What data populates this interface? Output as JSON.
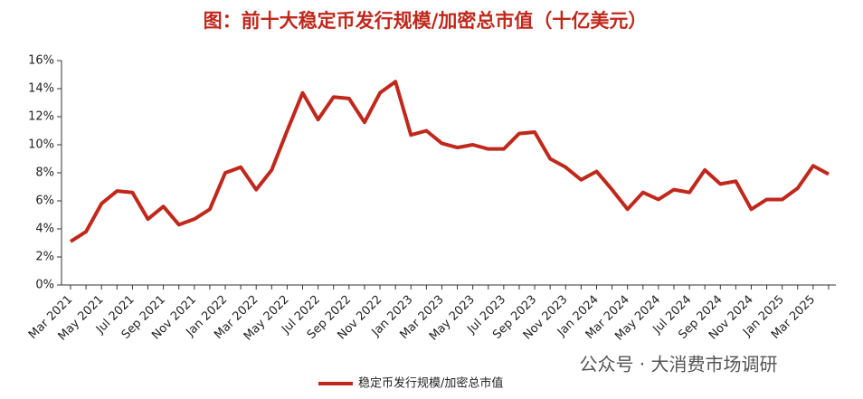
{
  "chart_data": {
    "type": "line",
    "title": "图：前十大稳定币发行规模/加密总市值（十亿美元）",
    "watermark": "公众号 · 大消费市场调研",
    "categories": [
      "Mar 2021",
      null,
      "May 2021",
      null,
      "Jul 2021",
      null,
      "Sep 2021",
      null,
      "Nov 2021",
      null,
      "Jan 2022",
      null,
      "Mar 2022",
      null,
      "May 2022",
      null,
      "Jul 2022",
      null,
      "Sep 2022",
      null,
      "Nov 2022",
      null,
      "Jan 2023",
      null,
      "Mar 2023",
      null,
      "May 2023",
      null,
      "Jul 2023",
      null,
      "Sep 2023",
      null,
      "Nov 2023",
      null,
      "Jan 2024",
      null,
      "Mar 2024",
      null,
      "May 2024",
      null,
      "Jul 2024",
      null,
      "Sep 2024",
      null,
      "Nov 2024",
      null,
      "Jan 2025",
      null,
      "Mar 2025",
      null
    ],
    "series": [
      {
        "name": "稳定币发行规模/加密总市值",
        "color": "#c0281c",
        "values": [
          3.1,
          3.8,
          5.8,
          6.7,
          6.6,
          4.7,
          5.6,
          4.3,
          4.7,
          5.4,
          8.0,
          8.4,
          6.8,
          8.2,
          11.0,
          13.7,
          11.8,
          13.4,
          13.3,
          11.6,
          13.7,
          14.5,
          10.7,
          11.0,
          10.1,
          9.8,
          10.0,
          9.7,
          9.7,
          10.8,
          10.9,
          9.0,
          8.4,
          7.5,
          8.1,
          6.8,
          5.4,
          6.6,
          6.1,
          6.8,
          6.6,
          8.2,
          7.2,
          7.4,
          5.4,
          6.1,
          6.1,
          6.9,
          8.5,
          7.9
        ]
      }
    ],
    "ylim": [
      0,
      16
    ],
    "yticks": [
      {
        "value": 0,
        "label": "0%"
      },
      {
        "value": 2,
        "label": "2%"
      },
      {
        "value": 4,
        "label": "4%"
      },
      {
        "value": 6,
        "label": "6%"
      },
      {
        "value": 8,
        "label": "8%"
      },
      {
        "value": 10,
        "label": "10%"
      },
      {
        "value": 12,
        "label": "12%"
      },
      {
        "value": 14,
        "label": "14%"
      },
      {
        "value": 16,
        "label": "16%"
      }
    ]
  }
}
